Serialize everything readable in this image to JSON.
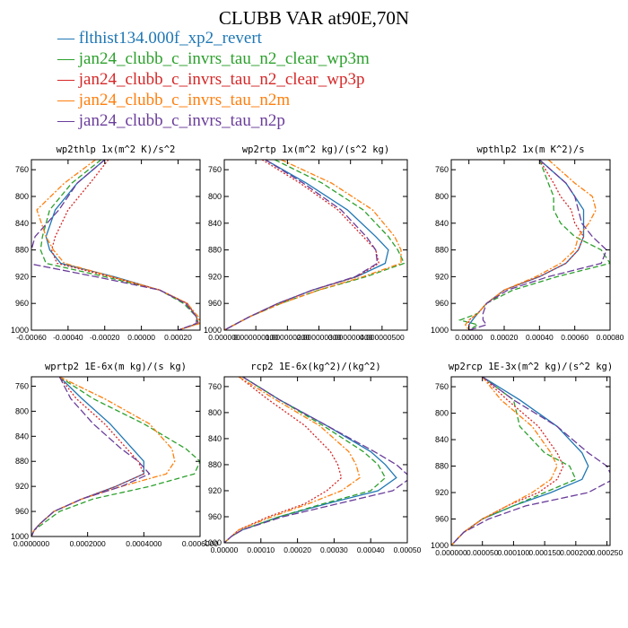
{
  "title": "CLUBB VAR at90E,70N",
  "legend": [
    {
      "label": "flthist134.000f_xp2_revert",
      "color": "#1f77b4",
      "dash": ""
    },
    {
      "label": "jan24_clubb_c_invrs_tau_n2_clear_wp3m",
      "color": "#2ca02c",
      "dash": "6,3"
    },
    {
      "label": "jan24_clubb_c_invrs_tau_n2_clear_wp3p",
      "color": "#d62728",
      "dash": "2,2"
    },
    {
      "label": "jan24_clubb_c_invrs_tau_n2m",
      "color": "#ff7f0e",
      "dash": "6,2,2,2"
    },
    {
      "label": "jan24_clubb_c_invrs_tau_n2p",
      "color": "#6a3d9a",
      "dash": "8,3"
    }
  ],
  "chart_data": [
    {
      "type": "line",
      "title": "wp2thlp  1x(m^2 K)/s^2",
      "xlim": [
        -0.0006,
        0.00032
      ],
      "ylim": [
        745,
        1000
      ],
      "xticks": [
        "-0.00060",
        "-0.00040",
        "-0.00020",
        "0.00000",
        "0.00020"
      ],
      "xtick_values": [
        -0.0006,
        -0.0004,
        -0.0002,
        0.0,
        0.0002
      ],
      "yticks": [
        760,
        800,
        840,
        880,
        920,
        960,
        1000
      ],
      "y": [
        745,
        780,
        820,
        860,
        880,
        900,
        920,
        940,
        960,
        980,
        990,
        1000
      ],
      "series": [
        {
          "values": [
            -0.0002,
            -0.00035,
            -0.00047,
            -0.00052,
            -0.0005,
            -0.00044,
            -0.00015,
            0.0001,
            0.00025,
            0.0003,
            0.00031,
            0.0002
          ]
        },
        {
          "values": [
            -0.00022,
            -0.00038,
            -0.0005,
            -0.00054,
            -0.00055,
            -0.00052,
            -0.0002,
            0.0001,
            0.00023,
            0.0003,
            0.00031,
            0.0002
          ]
        },
        {
          "values": [
            -0.00018,
            -0.00028,
            -0.0004,
            -0.00047,
            -0.00049,
            -0.00046,
            -0.00017,
            0.0001,
            0.00025,
            0.0003,
            0.00031,
            0.0002
          ]
        },
        {
          "values": [
            -0.00025,
            -0.00042,
            -0.00057,
            -0.00052,
            -0.00048,
            -0.00042,
            -0.00016,
            0.0001,
            0.00025,
            0.00031,
            0.00032,
            0.0002
          ]
        },
        {
          "values": [
            -0.0002,
            -0.00035,
            -0.00045,
            -0.00058,
            -0.0006,
            -0.00062,
            -0.00025,
            0.0001,
            0.00024,
            0.0003,
            0.0003,
            0.0002
          ]
        }
      ]
    },
    {
      "type": "line",
      "title": "wp2rtp  1x(m^2 kg)/(s^2 kg)",
      "xlim": [
        0,
        5.8e-07
      ],
      "ylim": [
        745,
        1000
      ],
      "xticks": [
        "0.000000",
        "0.000000100",
        "0.000000200",
        "0.000000300",
        "0.000000400",
        "0.000000500"
      ],
      "xtick_values": [
        0,
        1e-07,
        2e-07,
        3e-07,
        4e-07,
        5e-07
      ],
      "yticks": [
        760,
        800,
        840,
        880,
        920,
        960,
        1000
      ],
      "y": [
        745,
        780,
        820,
        860,
        880,
        900,
        920,
        940,
        960,
        980,
        990,
        1000
      ],
      "series": [
        {
          "values": [
            1.3e-07,
            2.6e-07,
            3.9e-07,
            4.8e-07,
            5.2e-07,
            5.1e-07,
            4.2e-07,
            2.8e-07,
            1.7e-07,
            8e-08,
            4e-08,
            0
          ]
        },
        {
          "values": [
            1.6e-07,
            3.1e-07,
            4.4e-07,
            5.2e-07,
            5.5e-07,
            5.7e-07,
            4.5e-07,
            3e-07,
            1.8e-07,
            8e-08,
            4e-08,
            0
          ]
        },
        {
          "values": [
            1.2e-07,
            2.4e-07,
            3.6e-07,
            4.4e-07,
            4.8e-07,
            4.9e-07,
            4.2e-07,
            2.8e-07,
            1.7e-07,
            8e-08,
            4e-08,
            0
          ]
        },
        {
          "values": [
            1.8e-07,
            3.4e-07,
            4.7e-07,
            5.4e-07,
            5.6e-07,
            5.6e-07,
            4.4e-07,
            3e-07,
            1.8e-07,
            8e-08,
            4e-08,
            0
          ]
        },
        {
          "values": [
            1.3e-07,
            2.5e-07,
            3.7e-07,
            4.5e-07,
            4.8e-07,
            4.85e-07,
            4.15e-07,
            2.8e-07,
            1.7e-07,
            8e-08,
            4e-08,
            0
          ]
        }
      ]
    },
    {
      "type": "line",
      "title": "wpthlp2  1x(m K^2)/s",
      "xlim": [
        -0.0001,
        0.0008
      ],
      "ylim": [
        745,
        1000
      ],
      "xticks": [
        "0.00000",
        "0.00020",
        "0.00040",
        "0.00060",
        "0.00080"
      ],
      "xtick_values": [
        0,
        0.0002,
        0.0004,
        0.0006,
        0.0008
      ],
      "yticks": [
        760,
        800,
        840,
        880,
        920,
        960,
        1000
      ],
      "y": [
        745,
        780,
        800,
        820,
        840,
        860,
        880,
        900,
        920,
        940,
        960,
        975,
        985,
        992,
        1000
      ],
      "series": [
        {
          "values": [
            0.0004,
            0.00055,
            0.0006,
            0.00065,
            0.00065,
            0.00065,
            0.00062,
            0.00055,
            0.0004,
            0.0002,
            0.0001,
            5e-05,
            2e-05,
            0.0,
            0.0
          ]
        },
        {
          "values": [
            0.0004,
            0.00045,
            0.00048,
            0.00048,
            0.00052,
            0.0006,
            0.00075,
            0.0008,
            0.0005,
            0.00025,
            0.0001,
            5e-05,
            -5e-05,
            5e-05,
            0.0
          ]
        },
        {
          "values": [
            0.0004,
            0.00048,
            0.00052,
            0.00058,
            0.0006,
            0.00065,
            0.00062,
            0.00055,
            0.0004,
            0.0002,
            0.0001,
            5e-05,
            0.0,
            0.0,
            0.0
          ]
        },
        {
          "values": [
            0.00045,
            0.0006,
            0.0007,
            0.00072,
            0.00068,
            0.00062,
            0.0006,
            0.00052,
            0.00038,
            0.0002,
            0.0001,
            5e-05,
            0.0,
            -2e-05,
            0.0
          ]
        },
        {
          "values": [
            0.0004,
            0.00055,
            0.0006,
            0.00062,
            0.00064,
            0.0007,
            0.00078,
            0.00075,
            0.00045,
            0.00022,
            0.0001,
            8e-05,
            8e-05,
            0.0001,
            0.0
          ]
        }
      ]
    },
    {
      "type": "line",
      "title": "wprtp2  1E-6x(m kg)/(s kg)",
      "xlim": [
        0,
        0.0006
      ],
      "ylim": [
        745,
        1000
      ],
      "xticks": [
        "0.0000000",
        "0.0002000",
        "0.0004000",
        "0.0006000"
      ],
      "xtick_values": [
        0,
        0.0002,
        0.0004,
        0.0006
      ],
      "yticks": [
        760,
        800,
        840,
        880,
        920,
        960,
        1000
      ],
      "y": [
        745,
        780,
        820,
        860,
        880,
        900,
        920,
        940,
        960,
        980,
        990,
        1000
      ],
      "series": [
        {
          "values": [
            0.0001,
            0.00018,
            0.00028,
            0.00036,
            0.0004,
            0.0004,
            0.0003,
            0.00018,
            8e-05,
            3e-05,
            1e-05,
            0
          ]
        },
        {
          "values": [
            0.0001,
            0.00022,
            0.0004,
            0.00055,
            0.0006,
            0.00058,
            0.00042,
            0.00022,
            0.0001,
            4e-05,
            1e-05,
            0
          ]
        },
        {
          "values": [
            0.0001,
            0.00016,
            0.00026,
            0.00034,
            0.00038,
            0.0004,
            0.0003,
            0.00018,
            8e-05,
            3e-05,
            1e-05,
            0
          ]
        },
        {
          "values": [
            0.0001,
            0.00026,
            0.00042,
            0.0005,
            0.00051,
            0.00048,
            0.00032,
            0.00018,
            8e-05,
            3e-05,
            1e-05,
            0
          ]
        },
        {
          "values": [
            0.0001,
            0.00014,
            0.00022,
            0.00032,
            0.00038,
            0.00042,
            0.00032,
            0.00018,
            8e-05,
            3e-05,
            1e-05,
            0
          ]
        }
      ]
    },
    {
      "type": "line",
      "title": "rcp2  1E-6x(kg^2)/(kg^2)",
      "xlim": [
        0,
        0.0005
      ],
      "ylim": [
        745,
        1000
      ],
      "xticks": [
        "0.00000",
        "0.00010",
        "0.00020",
        "0.00030",
        "0.00040",
        "0.00050"
      ],
      "xtick_values": [
        0,
        0.0001,
        0.0002,
        0.0003,
        0.0004,
        0.0005
      ],
      "yticks": [
        760,
        800,
        840,
        880,
        920,
        960,
        1000
      ],
      "y": [
        745,
        780,
        820,
        860,
        880,
        900,
        920,
        940,
        960,
        980,
        990,
        1000
      ],
      "series": [
        {
          "values": [
            5e-05,
            0.00015,
            0.00028,
            0.0004,
            0.00044,
            0.00047,
            0.00042,
            0.00028,
            0.00015,
            5e-05,
            2e-05,
            0
          ]
        },
        {
          "values": [
            5e-05,
            0.00015,
            0.00027,
            0.00038,
            0.00042,
            0.00044,
            0.0004,
            0.00027,
            0.00015,
            5e-05,
            2e-05,
            0
          ]
        },
        {
          "values": [
            4e-05,
            0.00012,
            0.00022,
            0.00029,
            0.00031,
            0.00032,
            0.00028,
            0.00022,
            0.00012,
            4e-05,
            2e-05,
            0
          ]
        },
        {
          "values": [
            4e-05,
            0.00014,
            0.00026,
            0.00034,
            0.00036,
            0.00037,
            0.00032,
            0.00023,
            0.00013,
            4e-05,
            2e-05,
            0
          ]
        },
        {
          "values": [
            5e-05,
            0.00015,
            0.00028,
            0.00041,
            0.00047,
            0.00051,
            0.00046,
            0.00031,
            0.00016,
            5e-05,
            2e-05,
            0
          ]
        }
      ]
    },
    {
      "type": "line",
      "title": "wp2rcp  1E-3x(m^2 kg)/(s^2 kg)",
      "xlim": [
        0,
        0.000255
      ],
      "ylim": [
        745,
        1000
      ],
      "xticks": [
        "0.000000",
        "0.000050",
        "0.000100",
        "0.000150",
        "0.000200",
        "0.000250"
      ],
      "xtick_values": [
        0,
        5e-05,
        0.0001,
        0.00015,
        0.0002,
        0.00025
      ],
      "yticks": [
        760,
        800,
        840,
        880,
        920,
        960,
        1000
      ],
      "y": [
        745,
        780,
        820,
        860,
        880,
        900,
        920,
        940,
        960,
        980,
        990,
        1000
      ],
      "series": [
        {
          "values": [
            5e-05,
            0.00011,
            0.00017,
            0.00021,
            0.00022,
            0.00021,
            0.00016,
            0.0001,
            5e-05,
            2e-05,
            1e-05,
            0
          ]
        },
        {
          "values": [
            5e-05,
            0.0001,
            0.00011,
            0.00015,
            0.00019,
            0.0002,
            0.00015,
            0.0001,
            5e-05,
            2e-05,
            1e-05,
            0
          ]
        },
        {
          "values": [
            5e-05,
            9e-05,
            0.00014,
            0.00017,
            0.00018,
            0.00017,
            0.00014,
            9e-05,
            5e-05,
            2e-05,
            1e-05,
            0
          ]
        },
        {
          "values": [
            5e-05,
            8e-05,
            0.00013,
            0.00016,
            0.00017,
            0.00016,
            0.00013,
            9e-05,
            5e-05,
            2e-05,
            1e-05,
            0
          ]
        },
        {
          "values": [
            5e-05,
            0.0001,
            0.00017,
            0.00022,
            0.00025,
            0.00026,
            0.00022,
            0.00012,
            6e-05,
            2e-05,
            1e-05,
            0
          ]
        }
      ]
    }
  ]
}
